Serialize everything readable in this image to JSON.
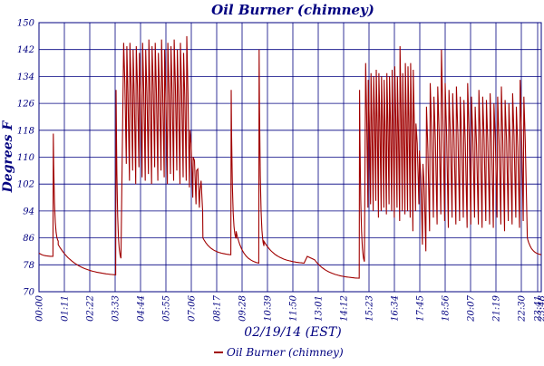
{
  "chart_data": {
    "type": "line",
    "title": "Oil Burner (chimney)",
    "xlabel": "02/19/14 (EST)",
    "ylabel": "Degrees F",
    "ylim": [
      70,
      150
    ],
    "y_ticks": [
      70,
      78,
      86,
      94,
      102,
      110,
      118,
      126,
      134,
      142,
      150
    ],
    "x_tick_labels": [
      "00:00",
      "01:11",
      "02:22",
      "03:33",
      "04:44",
      "05:55",
      "07:06",
      "08:17",
      "09:28",
      "10:39",
      "11:50",
      "13:01",
      "14:12",
      "15:23",
      "16:34",
      "17:45",
      "18:56",
      "20:07",
      "21:19",
      "22:30",
      "23:41",
      "23:48"
    ],
    "xlim_minutes": [
      0,
      1440
    ],
    "grid": true,
    "legend_position": "bottom-center",
    "colors": {
      "series": "#a00000",
      "grid": "#000080",
      "text": "#000080"
    },
    "series": [
      {
        "name": "Oil Burner (chimney)",
        "segments": [
          {
            "kind": "decay",
            "start": 0,
            "end": 40,
            "from": 81.5,
            "to": 80.5
          },
          {
            "kind": "spike",
            "start": 40,
            "end": 108,
            "peak": 117
          },
          {
            "kind": "decay",
            "start": 55,
            "end": 220,
            "from": 84,
            "to": 75
          },
          {
            "kind": "spike",
            "start": 220,
            "end": 242,
            "peak": 130
          },
          {
            "kind": "cycle",
            "start": 242,
            "end": 432,
            "highs": [
              144,
              143,
              144,
              142,
              143,
              141,
              144,
              142,
              145,
              143,
              144,
              141,
              145,
              142,
              144,
              143,
              145,
              142,
              144,
              141,
              146
            ],
            "lows": [
              108,
              103,
              106,
              102,
              107,
              104,
              103,
              105,
              102,
              107,
              103,
              106,
              104,
              102,
              105,
              103,
              106,
              102,
              104,
              103,
              101
            ]
          },
          {
            "kind": "cycle",
            "start": 432,
            "end": 470,
            "highs": [
              118,
              110,
              106,
              100
            ],
            "lows": [
              98,
              96,
              95,
              94
            ]
          },
          {
            "kind": "decay",
            "start": 470,
            "end": 550,
            "from": 86,
            "to": 81
          },
          {
            "kind": "spike",
            "start": 550,
            "end": 620,
            "peak": 130
          },
          {
            "kind": "decay",
            "start": 565,
            "end": 630,
            "from": 88,
            "to": 78.5
          },
          {
            "kind": "spike",
            "start": 630,
            "end": 700,
            "peak": 142
          },
          {
            "kind": "decay",
            "start": 645,
            "end": 760,
            "from": 85,
            "to": 78.5
          },
          {
            "kind": "bump",
            "start": 760,
            "end": 790,
            "peak": 80.5
          },
          {
            "kind": "decay",
            "start": 790,
            "end": 918,
            "from": 79.5,
            "to": 74
          },
          {
            "kind": "spike",
            "start": 918,
            "end": 936,
            "peak": 130
          },
          {
            "kind": "cycle",
            "start": 936,
            "end": 1080,
            "highs": [
              138,
              133,
              135,
              134,
              136,
              135,
              134,
              133,
              135,
              134,
              136,
              137,
              134,
              143,
              135,
              138,
              137,
              138,
              136
            ],
            "lows": [
              95,
              96,
              94,
              97,
              92,
              94,
              95,
              93,
              96,
              94,
              92,
              95,
              91,
              94,
              93,
              94,
              92,
              88,
              94
            ]
          },
          {
            "kind": "cycle",
            "start": 1080,
            "end": 1110,
            "highs": [
              120,
              112,
              108
            ],
            "lows": [
              96,
              84,
              82
            ]
          },
          {
            "kind": "cycle",
            "start": 1110,
            "end": 1400,
            "highs": [
              125,
              132,
              128,
              131,
              142,
              132,
              130,
              129,
              131,
              128,
              127,
              132,
              128,
              125,
              130,
              128,
              127,
              129,
              126,
              128,
              131,
              127,
              126,
              129,
              125,
              133,
              128
            ],
            "lows": [
              88,
              92,
              90,
              93,
              91,
              89,
              92,
              90,
              91,
              92,
              89,
              90,
              92,
              90,
              89,
              91,
              90,
              89,
              92,
              90,
              88,
              91,
              90,
              92,
              89,
              91,
              90
            ]
          },
          {
            "kind": "decay",
            "start": 1400,
            "end": 1440,
            "from": 86,
            "to": 81
          }
        ]
      }
    ]
  }
}
